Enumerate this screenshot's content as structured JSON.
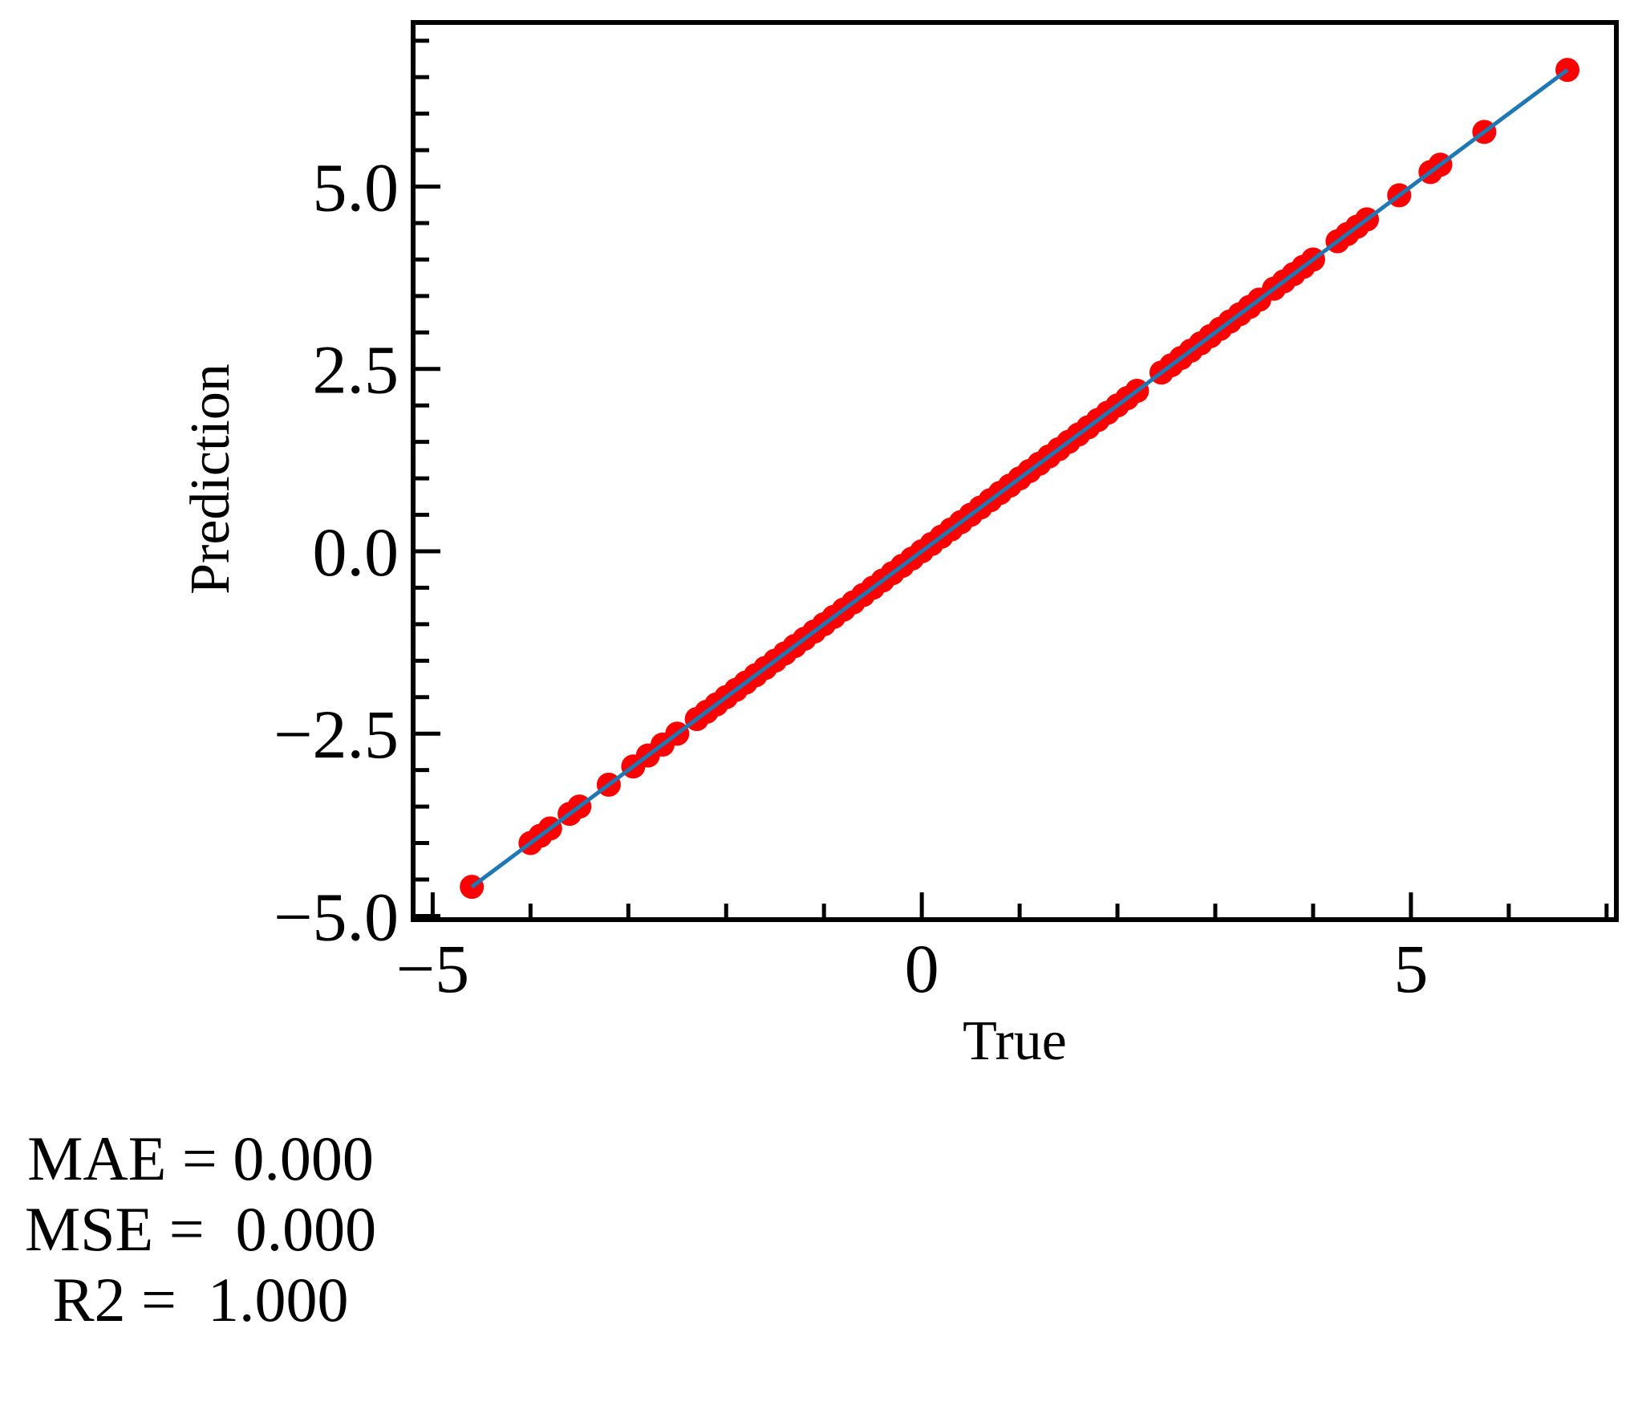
{
  "chart_data": {
    "type": "scatter",
    "xlabel": "True",
    "ylabel": "Prediction",
    "xlim": [
      -5.2,
      7.1
    ],
    "ylim": [
      -5.05,
      7.25
    ],
    "x_ticks": [
      -5,
      0,
      5
    ],
    "x_tick_labels": [
      "−5",
      "0",
      "5"
    ],
    "y_ticks": [
      -5.0,
      -2.5,
      0.0,
      2.5,
      5.0
    ],
    "y_tick_labels": [
      "−5.0",
      "−2.5",
      "0.0",
      "2.5",
      "5.0"
    ],
    "x_minor_step": 1,
    "y_minor_step": 0.5,
    "grid": false,
    "point_color": "#ff0000",
    "line_color": "#1f77b4",
    "fit_line": {
      "x": [
        -4.6,
        6.6
      ],
      "y": [
        -4.6,
        6.6
      ]
    },
    "points": [
      [
        -4.6,
        -4.6
      ],
      [
        -4.0,
        -4.0
      ],
      [
        -3.9,
        -3.9
      ],
      [
        -3.8,
        -3.8
      ],
      [
        -3.6,
        -3.6
      ],
      [
        -3.5,
        -3.5
      ],
      [
        -3.2,
        -3.2
      ],
      [
        -2.95,
        -2.95
      ],
      [
        -2.8,
        -2.8
      ],
      [
        -2.65,
        -2.65
      ],
      [
        -2.5,
        -2.5
      ],
      [
        -2.3,
        -2.3
      ],
      [
        -2.2,
        -2.2
      ],
      [
        -2.1,
        -2.1
      ],
      [
        -2.0,
        -2.0
      ],
      [
        -1.9,
        -1.9
      ],
      [
        -1.8,
        -1.8
      ],
      [
        -1.7,
        -1.7
      ],
      [
        -1.6,
        -1.6
      ],
      [
        -1.5,
        -1.5
      ],
      [
        -1.4,
        -1.4
      ],
      [
        -1.3,
        -1.3
      ],
      [
        -1.2,
        -1.2
      ],
      [
        -1.1,
        -1.1
      ],
      [
        -1.0,
        -1.0
      ],
      [
        -0.9,
        -0.9
      ],
      [
        -0.8,
        -0.8
      ],
      [
        -0.7,
        -0.7
      ],
      [
        -0.6,
        -0.6
      ],
      [
        -0.5,
        -0.5
      ],
      [
        -0.4,
        -0.4
      ],
      [
        -0.3,
        -0.3
      ],
      [
        -0.2,
        -0.2
      ],
      [
        -0.1,
        -0.1
      ],
      [
        0.0,
        0.0
      ],
      [
        0.1,
        0.1
      ],
      [
        0.2,
        0.2
      ],
      [
        0.3,
        0.3
      ],
      [
        0.4,
        0.4
      ],
      [
        0.5,
        0.5
      ],
      [
        0.6,
        0.6
      ],
      [
        0.7,
        0.7
      ],
      [
        0.8,
        0.8
      ],
      [
        0.9,
        0.9
      ],
      [
        1.0,
        1.0
      ],
      [
        1.1,
        1.1
      ],
      [
        1.2,
        1.2
      ],
      [
        1.3,
        1.3
      ],
      [
        1.4,
        1.4
      ],
      [
        1.5,
        1.5
      ],
      [
        1.6,
        1.6
      ],
      [
        1.7,
        1.7
      ],
      [
        1.8,
        1.8
      ],
      [
        1.9,
        1.9
      ],
      [
        2.0,
        2.0
      ],
      [
        2.1,
        2.1
      ],
      [
        2.2,
        2.2
      ],
      [
        2.45,
        2.45
      ],
      [
        2.55,
        2.55
      ],
      [
        2.65,
        2.65
      ],
      [
        2.75,
        2.75
      ],
      [
        2.85,
        2.85
      ],
      [
        2.95,
        2.95
      ],
      [
        3.05,
        3.05
      ],
      [
        3.15,
        3.15
      ],
      [
        3.25,
        3.25
      ],
      [
        3.35,
        3.35
      ],
      [
        3.45,
        3.45
      ],
      [
        3.6,
        3.6
      ],
      [
        3.7,
        3.7
      ],
      [
        3.8,
        3.8
      ],
      [
        3.9,
        3.9
      ],
      [
        4.0,
        4.0
      ],
      [
        4.25,
        4.25
      ],
      [
        4.35,
        4.35
      ],
      [
        4.45,
        4.45
      ],
      [
        4.55,
        4.55
      ],
      [
        4.88,
        4.88
      ],
      [
        5.2,
        5.2
      ],
      [
        5.3,
        5.3
      ],
      [
        5.75,
        5.75
      ],
      [
        6.6,
        6.6
      ]
    ]
  },
  "metrics": {
    "mae": "MAE = 0.000",
    "mse": "MSE =  0.000",
    "r2": "R2 =  1.000"
  }
}
